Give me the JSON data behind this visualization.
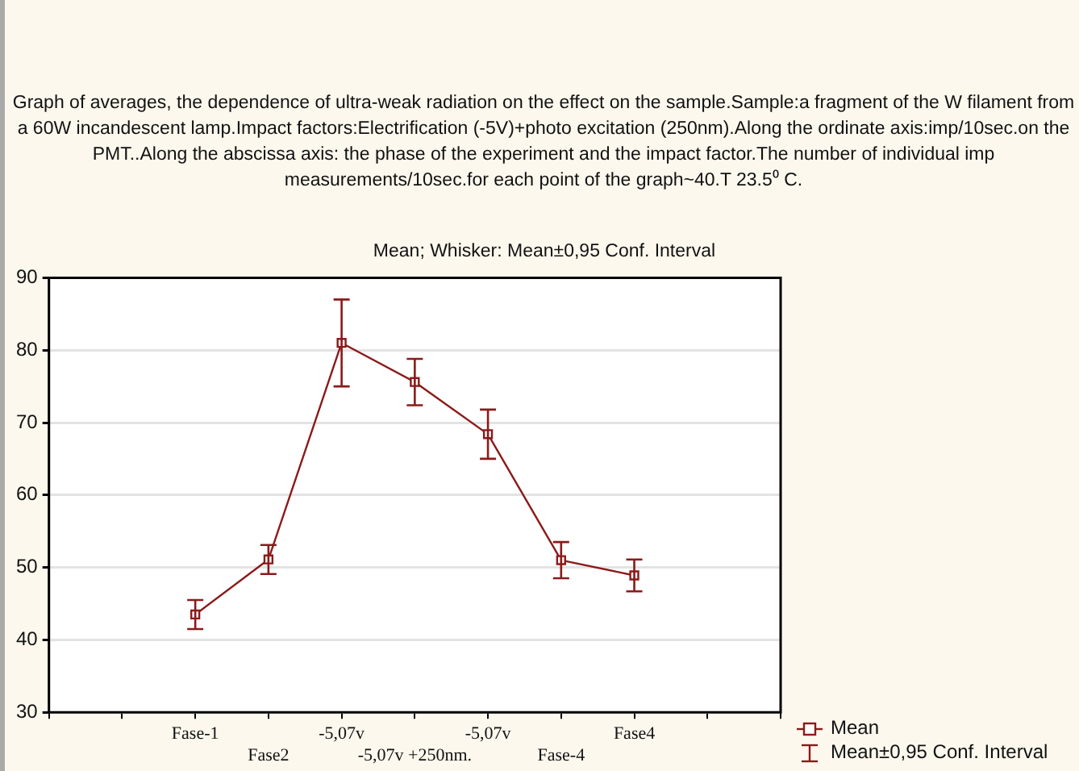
{
  "chart_data": {
    "type": "line",
    "title": "Graph of averages, the dependence of ultra-weak radiation on the effect on the sample.Sample:a fragment of the W filament from a 60W incandescent lamp.Impact factors:Electrification (-5V)+photo excitation (250nm).Along the ordinate axis:imp/10sec.on the PMT..Along the abscissa axis: the phase of the experiment and the impact factor.The number of individual imp measurements/10sec.for each point of the graph~40.T 23.5⁰ C.",
    "subtitle": "Mean; Whisker: Mean±0,95 Conf. Interval",
    "categories": [
      null,
      null,
      "Fase-1",
      "Fase2",
      "-5,07v",
      "-5,07v +250nm.",
      "-5,07v",
      "Fase-4",
      "Fase4",
      null,
      null
    ],
    "series": [
      {
        "name": "Mean",
        "color": "#8b1a1a",
        "values": [
          null,
          null,
          43.5,
          51.1,
          81.0,
          75.6,
          68.4,
          51.0,
          48.9,
          null,
          null
        ],
        "errors": [
          null,
          null,
          2,
          2,
          6,
          3.2,
          3.4,
          2.5,
          2.2,
          null,
          null
        ]
      }
    ],
    "annotations": [
      "Mean±0,95 Conf. Interval"
    ],
    "ylim": [
      30,
      90
    ],
    "yticks": [
      30,
      40,
      50,
      60,
      70,
      80,
      90
    ],
    "grid": "y",
    "legend": "bottom right",
    "marker": "square",
    "line_style": "solid"
  }
}
